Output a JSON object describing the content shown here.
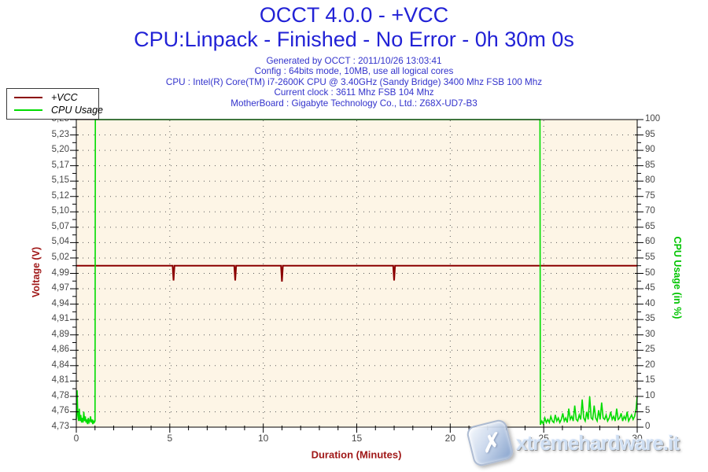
{
  "title": "OCCT 4.0.0 - +VCC",
  "subtitle": "CPU:Linpack - Finished - No Error - 0h 30m 0s",
  "info_lines": [
    "Generated by OCCT : 2011/10/26 13:03:41",
    "Config : 64bits mode, 10MB, use all logical cores",
    "CPU : Intel(R) Core(TM) i7-2600K CPU @ 3.40GHz (Sandy Bridge) 3400 Mhz FSB 100 Mhz",
    "Current clock : 3611 Mhz FSB 104 Mhz",
    "MotherBoard : Gigabyte Technology Co., Ltd.: Z68X-UD7-B3"
  ],
  "legend": {
    "items": [
      {
        "label": "+VCC",
        "color": "#8B0000",
        "icon": "vcc-line-swatch"
      },
      {
        "label": "CPU Usage",
        "color": "#00DC00",
        "icon": "cpu-usage-line-swatch"
      }
    ]
  },
  "watermark": {
    "text": "xtremehardware.it",
    "logo_glyph": "✗"
  },
  "colors": {
    "title_blue": "#2222D6",
    "info_blue": "#3333CC",
    "voltage_red": "#8B0000",
    "axis_title_red": "#A01818",
    "cpu_green": "#00DC00",
    "axis_title_green": "#00C400",
    "plot_background": "#FDF5E6",
    "tick_label_gray": "#474747"
  },
  "chart_data": {
    "type": "line",
    "title": "OCCT 4.0.0 - +VCC",
    "xlabel": "Duration (Minutes)",
    "xlim": [
      0,
      30
    ],
    "x_ticks": [
      0,
      5,
      10,
      15,
      20,
      25,
      30
    ],
    "x_grid": [
      5,
      10,
      15,
      20,
      25
    ],
    "x_minor_step": 1,
    "grid": "dotted",
    "grid_color": "#5a5a5a",
    "plot_bg": "#FDF5E6",
    "legend_position": "top-left",
    "left_axis": {
      "label": "Voltage (V)",
      "color": "#A01818",
      "lim": [
        4.73,
        5.25
      ],
      "tick_labels": [
        "5,25",
        "5,23",
        "5,20",
        "5,17",
        "5,15",
        "5,12",
        "5,10",
        "5,07",
        "5,04",
        "5,02",
        "4,99",
        "4,97",
        "4,94",
        "4,91",
        "4,89",
        "4,86",
        "4,84",
        "4,81",
        "4,78",
        "4,76",
        "4,73"
      ]
    },
    "right_axis": {
      "label": "CPU Usage (in %)",
      "color": "#00C400",
      "lim": [
        0,
        100
      ],
      "tick_labels": [
        "100",
        "95",
        "90",
        "85",
        "80",
        "75",
        "70",
        "65",
        "60",
        "55",
        "50",
        "45",
        "40",
        "35",
        "30",
        "25",
        "20",
        "15",
        "10",
        "5",
        "0"
      ]
    },
    "series": [
      {
        "name": "+VCC",
        "data_name": "vcc-line",
        "axis": "left",
        "color": "#8B0000",
        "width": 2,
        "points": [
          [
            0,
            5.003
          ],
          [
            5.15,
            5.003
          ],
          [
            5.2,
            4.978
          ],
          [
            5.25,
            5.003
          ],
          [
            8.45,
            5.003
          ],
          [
            8.5,
            4.978
          ],
          [
            8.55,
            5.003
          ],
          [
            10.95,
            5.003
          ],
          [
            11.0,
            4.976
          ],
          [
            11.05,
            5.003
          ],
          [
            16.95,
            5.003
          ],
          [
            17.0,
            4.978
          ],
          [
            17.05,
            5.003
          ],
          [
            30,
            5.003
          ]
        ]
      },
      {
        "name": "CPU Usage",
        "data_name": "cpu-usage-line",
        "axis": "right",
        "color": "#00DC00",
        "width": 1.6,
        "points": [
          [
            0,
            2.5
          ],
          [
            0.04,
            12
          ],
          [
            0.08,
            4
          ],
          [
            0.12,
            2
          ],
          [
            0.16,
            6
          ],
          [
            0.2,
            2
          ],
          [
            0.24,
            4
          ],
          [
            0.28,
            1.5
          ],
          [
            0.32,
            3
          ],
          [
            0.36,
            1.5
          ],
          [
            0.4,
            5
          ],
          [
            0.44,
            2
          ],
          [
            0.48,
            3.5
          ],
          [
            0.52,
            1.5
          ],
          [
            0.56,
            2.5
          ],
          [
            0.6,
            1
          ],
          [
            0.64,
            3
          ],
          [
            0.68,
            1.5
          ],
          [
            0.72,
            2
          ],
          [
            0.76,
            3.5
          ],
          [
            0.8,
            1.5
          ],
          [
            0.84,
            2.5
          ],
          [
            0.88,
            1
          ],
          [
            0.92,
            2
          ],
          [
            0.96,
            1.5
          ],
          [
            1.0,
            2
          ],
          [
            1.02,
            100
          ],
          [
            24.8,
            100
          ],
          [
            24.82,
            0.8
          ],
          [
            24.9,
            2
          ],
          [
            24.98,
            1
          ],
          [
            25.06,
            3
          ],
          [
            25.14,
            1.5
          ],
          [
            25.22,
            2.5
          ],
          [
            25.3,
            1.5
          ],
          [
            25.38,
            3.5
          ],
          [
            25.46,
            2
          ],
          [
            25.54,
            1.5
          ],
          [
            25.62,
            4
          ],
          [
            25.7,
            2
          ],
          [
            25.78,
            3
          ],
          [
            25.86,
            1.5
          ],
          [
            25.94,
            2.5
          ],
          [
            26.02,
            4.5
          ],
          [
            26.1,
            2
          ],
          [
            26.18,
            3
          ],
          [
            26.26,
            1.5
          ],
          [
            26.34,
            6
          ],
          [
            26.42,
            2.5
          ],
          [
            26.5,
            3.5
          ],
          [
            26.58,
            2
          ],
          [
            26.66,
            7
          ],
          [
            26.74,
            2.5
          ],
          [
            26.82,
            2
          ],
          [
            26.9,
            4
          ],
          [
            26.98,
            2.5
          ],
          [
            27.06,
            9
          ],
          [
            27.14,
            3
          ],
          [
            27.22,
            2
          ],
          [
            27.3,
            5
          ],
          [
            27.38,
            2.5
          ],
          [
            27.46,
            10
          ],
          [
            27.54,
            3
          ],
          [
            27.62,
            2.5
          ],
          [
            27.7,
            7
          ],
          [
            27.78,
            3
          ],
          [
            27.86,
            2
          ],
          [
            27.94,
            5.5
          ],
          [
            28.02,
            2.5
          ],
          [
            28.1,
            8
          ],
          [
            28.18,
            3
          ],
          [
            28.26,
            2.5
          ],
          [
            28.34,
            4
          ],
          [
            28.42,
            2
          ],
          [
            28.5,
            3
          ],
          [
            28.58,
            5
          ],
          [
            28.66,
            2.5
          ],
          [
            28.74,
            3.5
          ],
          [
            28.82,
            2
          ],
          [
            28.9,
            6
          ],
          [
            28.98,
            2.5
          ],
          [
            29.06,
            3
          ],
          [
            29.14,
            4.5
          ],
          [
            29.22,
            2
          ],
          [
            29.3,
            3.5
          ],
          [
            29.38,
            2.5
          ],
          [
            29.46,
            5
          ],
          [
            29.54,
            2
          ],
          [
            29.62,
            3
          ],
          [
            29.7,
            4
          ],
          [
            29.78,
            2.5
          ],
          [
            29.86,
            3.5
          ],
          [
            29.94,
            6
          ],
          [
            30,
            10
          ]
        ]
      }
    ]
  }
}
